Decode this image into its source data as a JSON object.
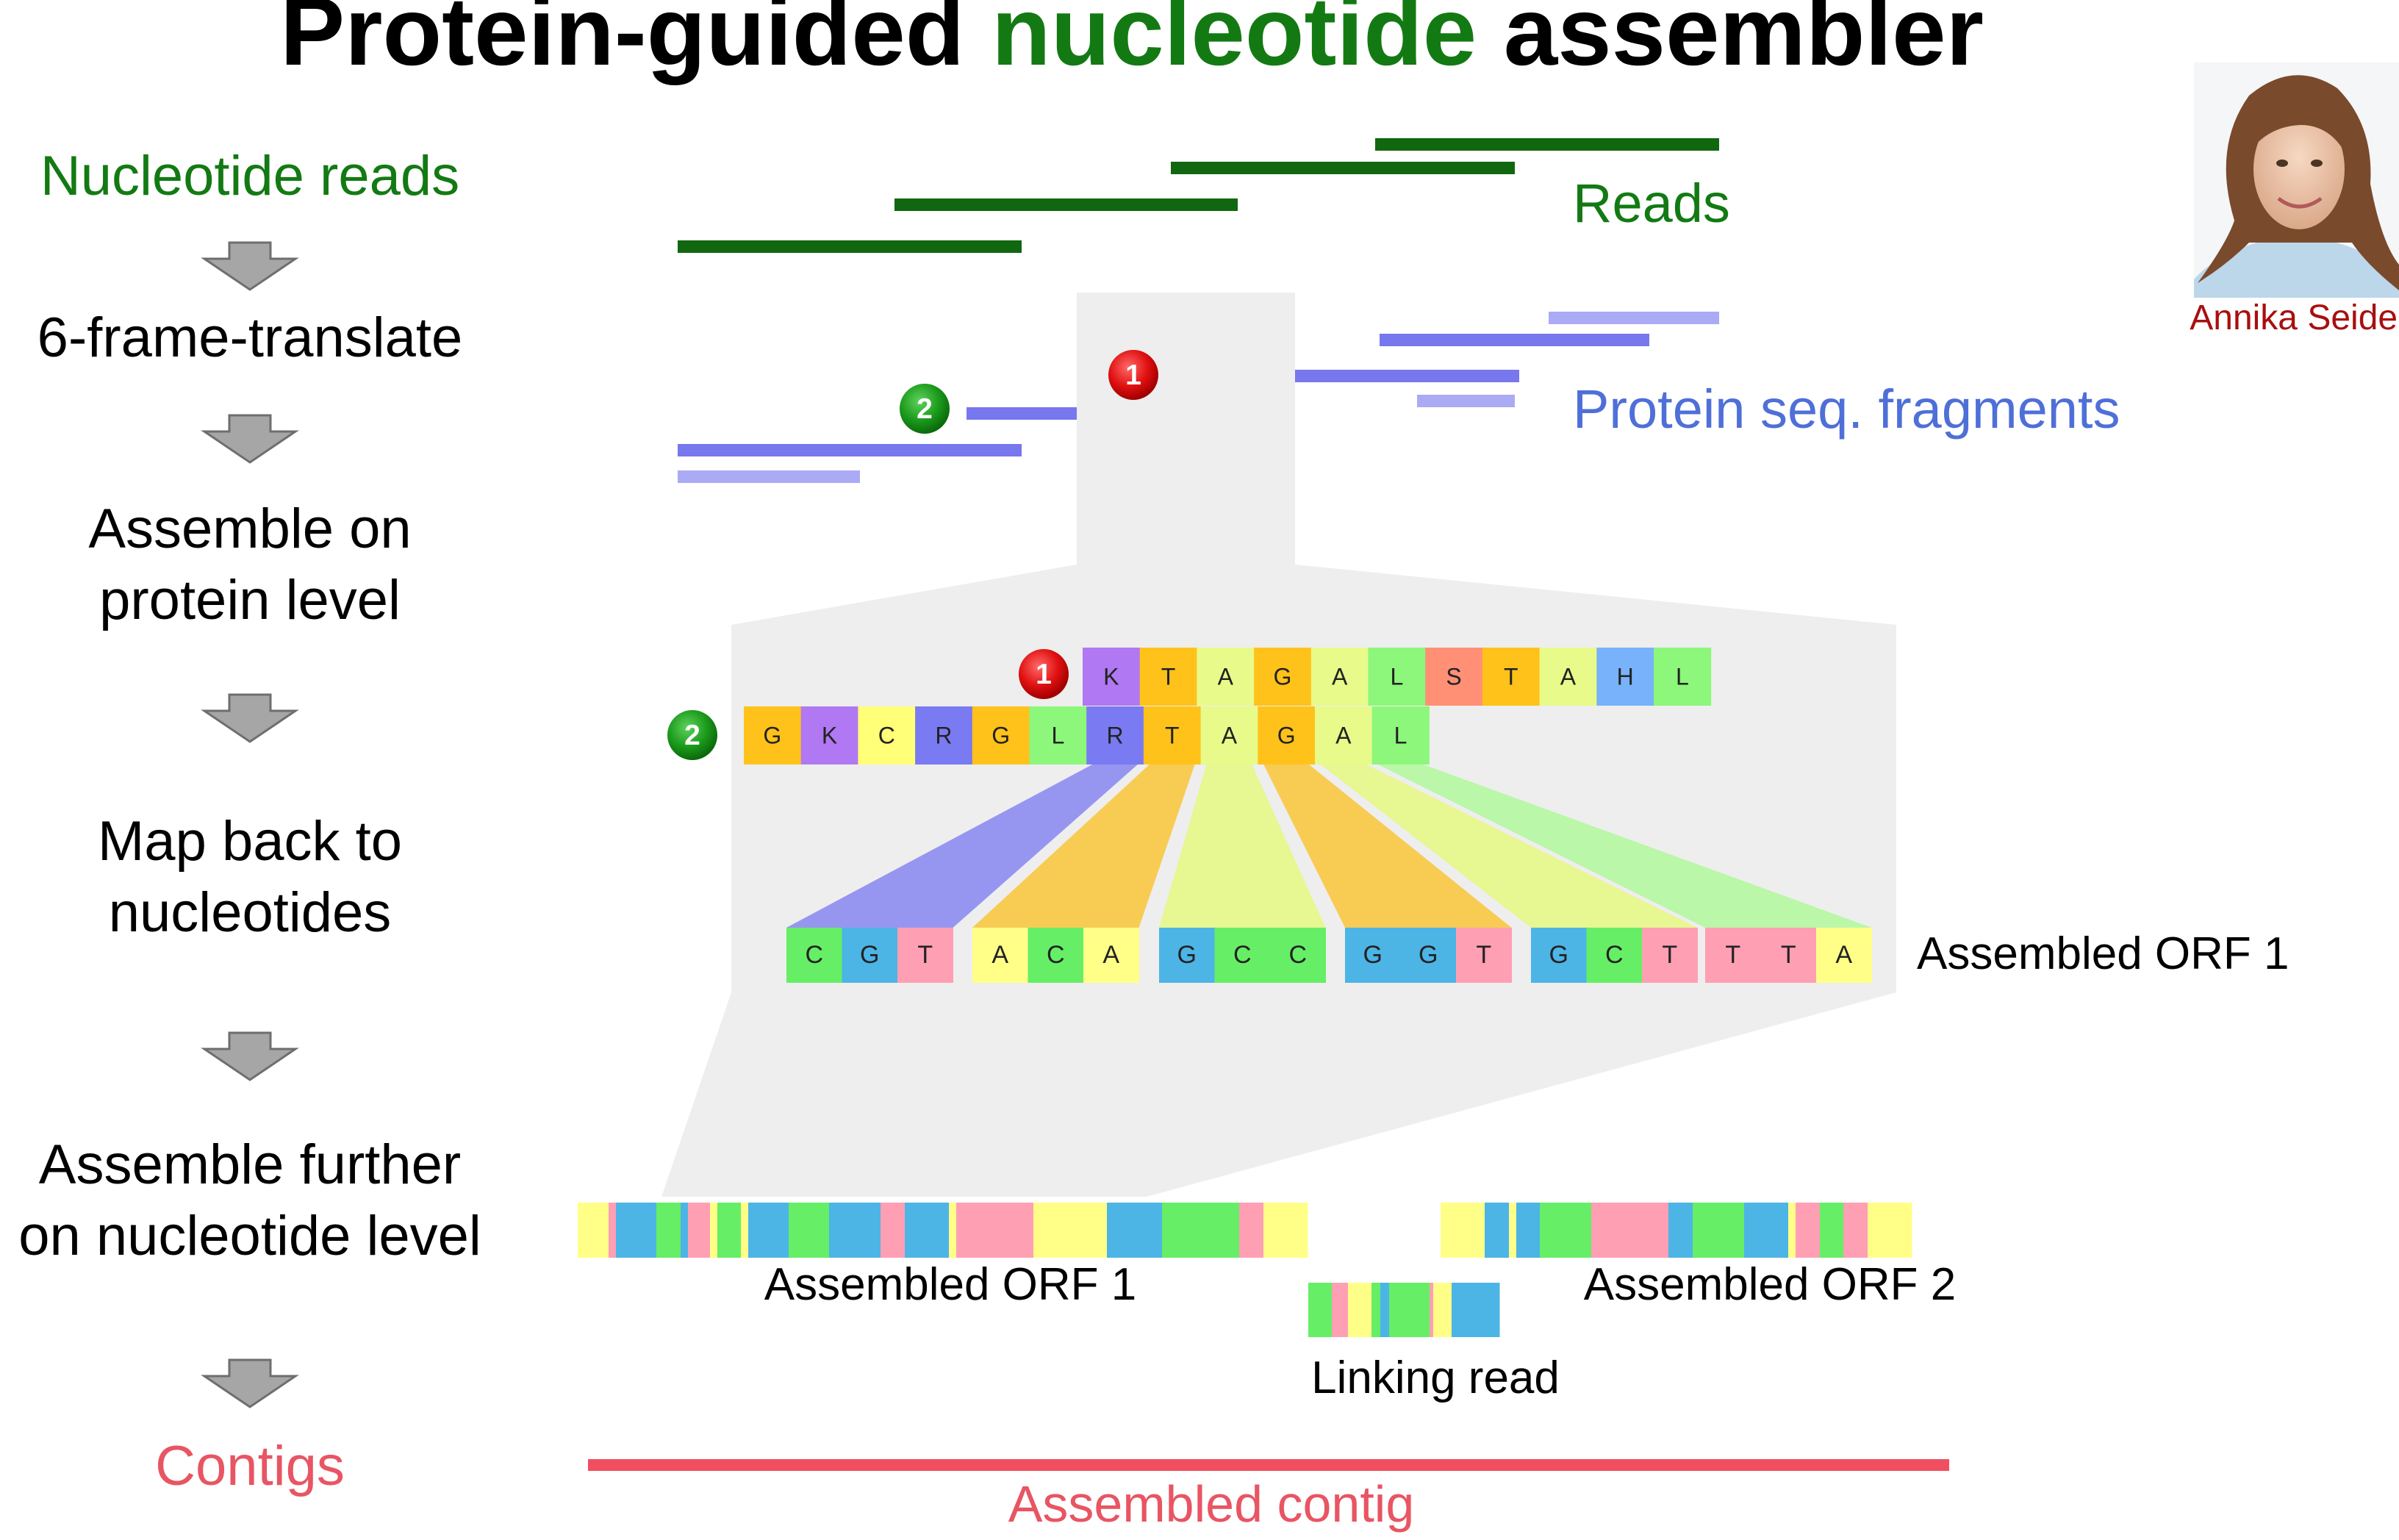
{
  "title": {
    "part1": "Protein-guided ",
    "part2": "nucleotide",
    "part3": " assembler"
  },
  "colors": {
    "green": "#137a13",
    "blue": "#4f6fd8",
    "read_line": "#106710",
    "protein_line": "#7777ee",
    "protein_line_light": "#aaaaf5",
    "red": "#e85563",
    "author": "#a80f0f",
    "panel": "#eeeeee",
    "aa": {
      "K": "#b078f2",
      "T": "#ffc21a",
      "A": "#e8fa8a",
      "G": "#ffc21a",
      "L": "#8cf77a",
      "S": "#ff9076",
      "H": "#78b2fa",
      "C": "#ffff78",
      "R": "#7a7af2"
    },
    "nt": {
      "C": "#66ee66",
      "G": "#4db4e6",
      "T": "#ff9fb4",
      "A": "#ffff88"
    }
  },
  "workflow": {
    "steps": [
      [
        "Nucleotide reads"
      ],
      [
        "6-frame-translate"
      ],
      [
        "Assemble on",
        "protein level"
      ],
      [
        "Map back to",
        "nucleotides"
      ],
      [
        "Assemble further",
        "on nucleotide level"
      ],
      [
        "Contigs"
      ]
    ]
  },
  "author": {
    "name": "Annika Seidel",
    "photo_alt": "portrait photo"
  },
  "labels": {
    "reads": "Reads",
    "protein_fragments": "Protein seq. fragments",
    "assembled_orf1_right": "Assembled ORF 1",
    "assembled_orf1_bottom": "Assembled ORF 1",
    "assembled_orf2": "Assembled ORF 2",
    "linking_read": "Linking read",
    "assembled_contig": "Assembled contig"
  },
  "markers": {
    "marker1": "1",
    "marker2": "2"
  },
  "fragment1": [
    "K",
    "T",
    "A",
    "G",
    "A",
    "L",
    "S",
    "T",
    "A",
    "H",
    "L"
  ],
  "fragment2": [
    "G",
    "K",
    "C",
    "R",
    "G",
    "L",
    "R",
    "T",
    "A",
    "G",
    "A",
    "L"
  ],
  "orf_codons": [
    [
      "C",
      "G",
      "T"
    ],
    [
      "A",
      "C",
      "A"
    ],
    [
      "G",
      "C",
      "C"
    ],
    [
      "G",
      "G",
      "T"
    ],
    [
      "G",
      "C",
      "T"
    ],
    [
      "T",
      "T",
      "A"
    ]
  ]
}
